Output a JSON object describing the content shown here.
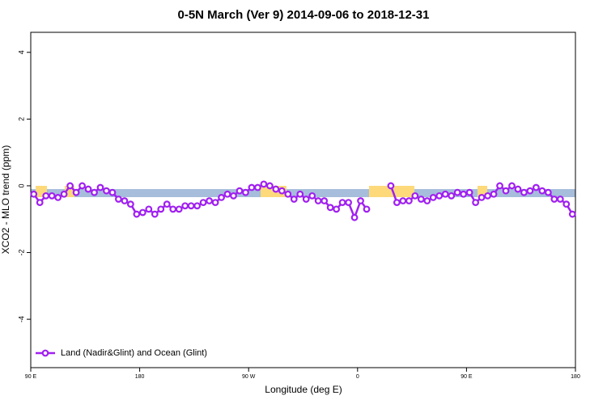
{
  "chart_data": {
    "type": "line",
    "title": "0-5N March (Ver 9)   2014-09-06 to 2018-12-31",
    "xlabel": "Longitude (deg E)",
    "ylabel": "XCO2 - MLO trend (ppm)",
    "x": [
      92.5,
      97.5,
      102.5,
      107.5,
      112.5,
      117.5,
      122.5,
      127.5,
      132.5,
      137.5,
      142.5,
      147.5,
      152.5,
      157.5,
      162.5,
      167.5,
      172.5,
      177.5,
      182.5,
      187.5,
      192.5,
      197.5,
      202.5,
      207.5,
      212.5,
      217.5,
      222.5,
      227.5,
      232.5,
      237.5,
      242.5,
      247.5,
      252.5,
      257.5,
      262.5,
      267.5,
      272.5,
      277.5,
      282.5,
      287.5,
      292.5,
      297.5,
      302.5,
      307.5,
      312.5,
      317.5,
      322.5,
      327.5,
      332.5,
      337.5,
      342.5,
      347.5,
      352.5,
      357.5,
      362.5,
      367.5,
      372.5,
      377.5,
      382.5,
      387.5,
      392.5,
      397.5,
      402.5,
      407.5,
      412.5,
      417.5,
      422.5,
      427.5,
      432.5,
      437.5,
      442.5,
      447.5,
      452.5,
      457.5,
      462.5,
      467.5,
      472.5,
      477.5,
      482.5,
      487.5,
      492.5,
      497.5,
      502.5,
      507.5,
      512.5,
      517.5,
      522.5,
      527.5,
      532.5,
      537.5
    ],
    "series": [
      {
        "name": "Land (Nadir&Glint) and Ocean (Glint)",
        "color": "#a020f0",
        "values": [
          -0.25,
          -0.5,
          -0.3,
          -0.3,
          -0.35,
          -0.25,
          0.0,
          -0.2,
          0.0,
          -0.1,
          -0.2,
          -0.05,
          -0.15,
          -0.2,
          -0.4,
          -0.45,
          -0.55,
          -0.85,
          -0.8,
          -0.7,
          -0.85,
          -0.7,
          -0.55,
          -0.7,
          -0.7,
          -0.6,
          -0.6,
          -0.6,
          -0.5,
          -0.45,
          -0.5,
          -0.35,
          -0.25,
          -0.3,
          -0.15,
          -0.2,
          -0.05,
          -0.05,
          0.05,
          0.0,
          -0.1,
          -0.15,
          -0.25,
          -0.4,
          -0.25,
          -0.4,
          -0.3,
          -0.45,
          -0.45,
          -0.65,
          -0.7,
          -0.5,
          -0.5,
          -0.95,
          -0.45,
          -0.7,
          null,
          null,
          null,
          0.0,
          -0.5,
          -0.45,
          -0.45,
          -0.3,
          -0.4,
          -0.45,
          -0.35,
          -0.3,
          -0.25,
          -0.3,
          -0.2,
          -0.25,
          -0.2,
          -0.5,
          -0.35,
          -0.3,
          -0.25,
          0.0,
          -0.15,
          0.0,
          -0.1,
          -0.2,
          -0.15,
          -0.05,
          -0.15,
          -0.2,
          -0.4,
          -0.4,
          -0.55,
          -0.85
        ]
      }
    ],
    "xlim": [
      90,
      540
    ],
    "xticks": [
      {
        "value": 90,
        "label": "90 E"
      },
      180,
      {
        "value": 270,
        "label": "90 W"
      },
      {
        "value": 360,
        "label": "0"
      },
      {
        "value": 450,
        "label": "90 E"
      },
      {
        "value": 540,
        "label": "180"
      }
    ],
    "ylim": [
      -5.45,
      4.6
    ],
    "yticks": [
      -4,
      -2,
      0,
      2,
      4
    ],
    "legend": "bottom-left"
  }
}
